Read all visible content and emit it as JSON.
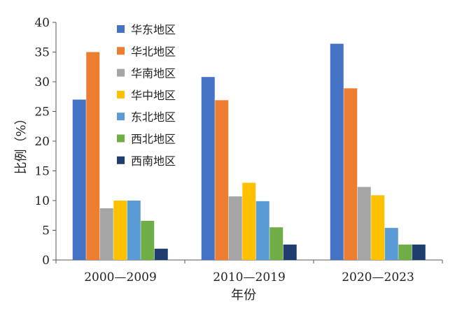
{
  "chart_data": {
    "type": "bar",
    "title": "",
    "xlabel": "年份",
    "ylabel": "比例（%）",
    "ylim": [
      0,
      40
    ],
    "yticks": [
      0,
      5,
      10,
      15,
      20,
      25,
      30,
      35,
      40
    ],
    "categories": [
      "2000—2009",
      "2010—2019",
      "2020—2023"
    ],
    "legend_position": "top-left",
    "grid": false,
    "series": [
      {
        "name": "华东地区",
        "color": "#4472c4",
        "values": [
          27,
          30.8,
          36.4
        ]
      },
      {
        "name": "华北地区",
        "color": "#ed7d31",
        "values": [
          35,
          26.9,
          28.9
        ]
      },
      {
        "name": "华南地区",
        "color": "#a5a5a5",
        "values": [
          8.7,
          10.7,
          12.3
        ]
      },
      {
        "name": "华中地区",
        "color": "#ffc000",
        "values": [
          10,
          13,
          10.9
        ]
      },
      {
        "name": "东北地区",
        "color": "#5b9bd5",
        "values": [
          10,
          9.9,
          5.4
        ]
      },
      {
        "name": "西北地区",
        "color": "#70ad47",
        "values": [
          6.6,
          5.5,
          2.6
        ]
      },
      {
        "name": "西南地区",
        "color": "#1f3d6e",
        "values": [
          1.9,
          2.6,
          2.6
        ]
      }
    ]
  }
}
